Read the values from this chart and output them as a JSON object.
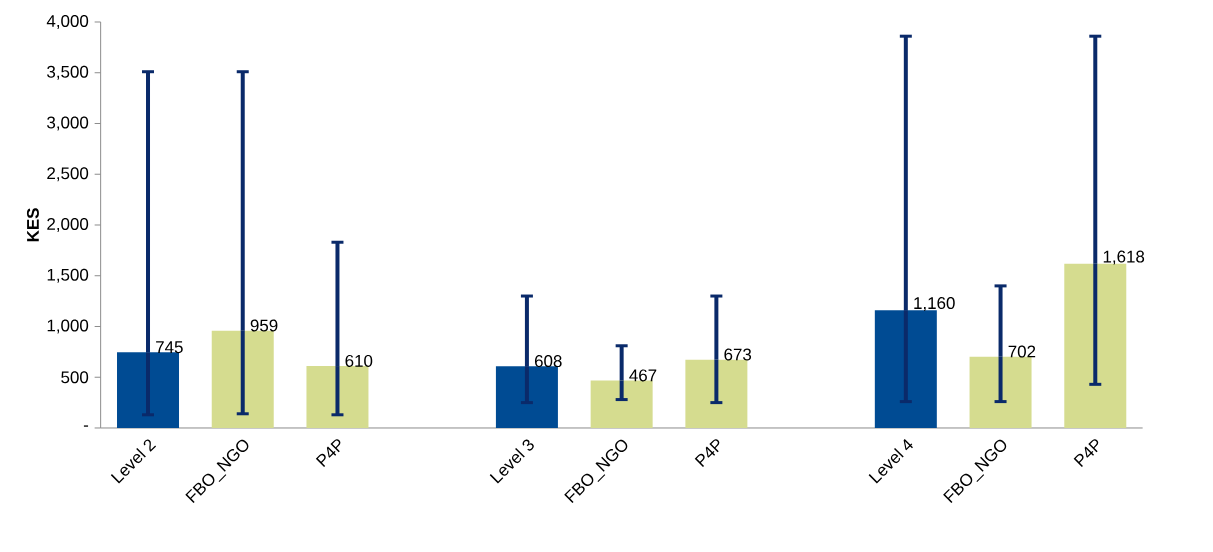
{
  "chart_data": {
    "type": "bar",
    "categories": [
      "Level 2",
      "FBO_NGO",
      "P4P",
      null,
      "Level 3",
      "FBO_NGO",
      "P4P",
      null,
      "Level 4",
      "FBO_NGO",
      "P4P"
    ],
    "values": [
      745,
      959,
      610,
      null,
      608,
      467,
      673,
      null,
      1160,
      702,
      1618
    ],
    "colors": [
      "#004b93",
      "#d5dc8f",
      "#d5dc8f",
      null,
      "#004b93",
      "#d5dc8f",
      "#d5dc8f",
      null,
      "#004b93",
      "#d5dc8f",
      "#d5dc8f"
    ],
    "errors": [
      [
        130,
        3510
      ],
      [
        140,
        3510
      ],
      [
        130,
        1830
      ],
      null,
      [
        250,
        1300
      ],
      [
        280,
        810
      ],
      [
        250,
        1300
      ],
      null,
      [
        260,
        3860
      ],
      [
        260,
        1400
      ],
      [
        430,
        3860
      ]
    ],
    "value_labels": [
      "745",
      "959",
      "610",
      null,
      "608",
      "467",
      "673",
      null,
      "1,160",
      "702",
      "1,618"
    ],
    "ylabel": "KES",
    "ylim": [
      0,
      4000
    ],
    "yticks": [
      {
        "value": 0,
        "label": "-"
      },
      {
        "value": 500,
        "label": "500"
      },
      {
        "value": 1000,
        "label": "1,000"
      },
      {
        "value": 1500,
        "label": "1,500"
      },
      {
        "value": 2000,
        "label": "2,000"
      },
      {
        "value": 2500,
        "label": "2,500"
      },
      {
        "value": 3000,
        "label": "3,000"
      },
      {
        "value": 3500,
        "label": "3,500"
      },
      {
        "value": 4000,
        "label": "4,000"
      }
    ]
  }
}
